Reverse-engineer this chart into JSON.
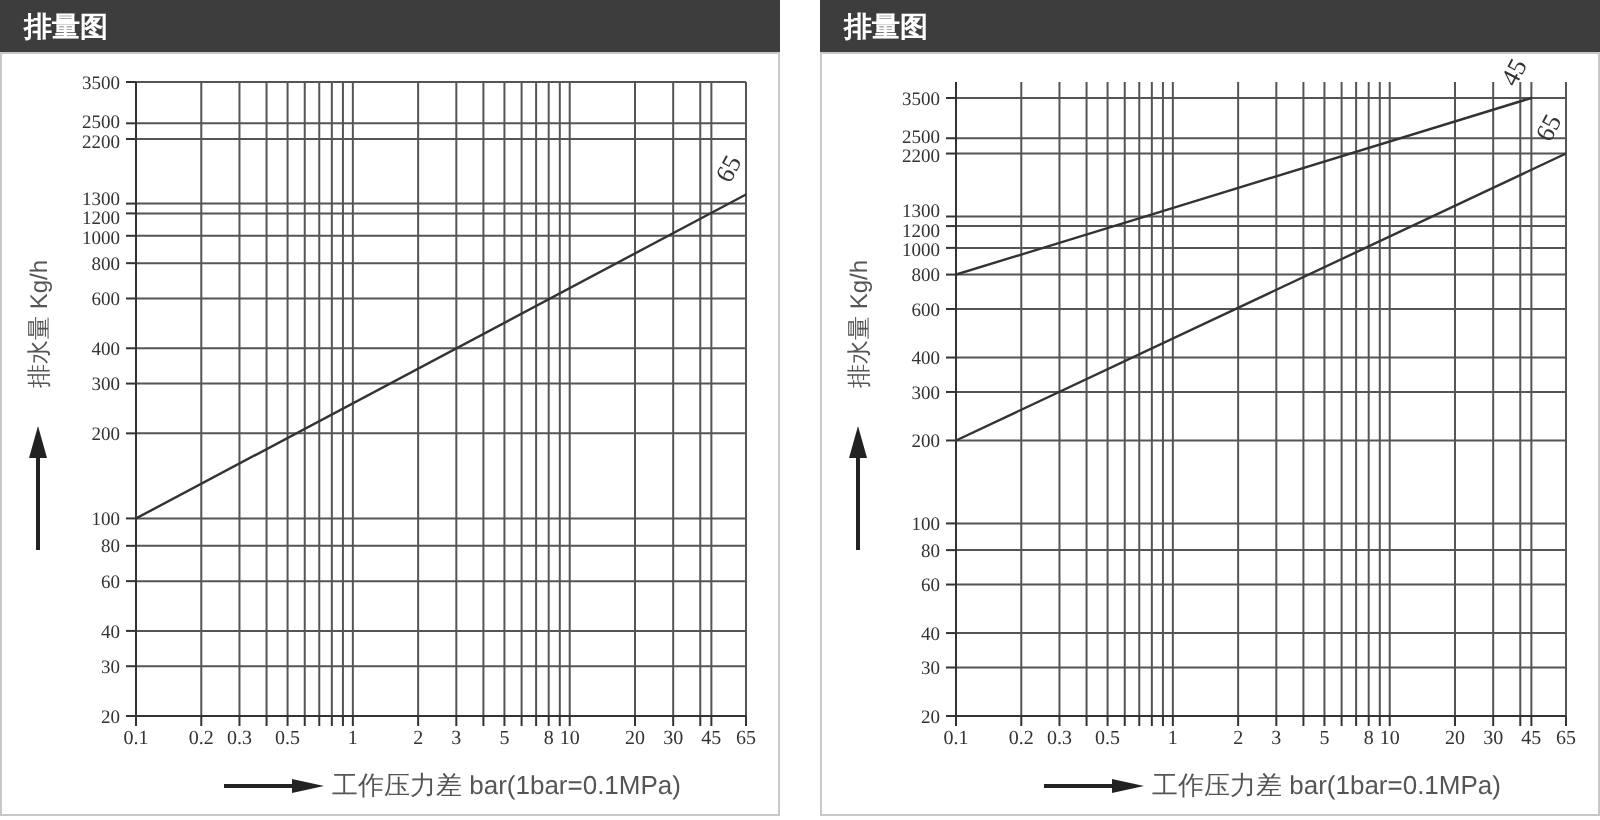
{
  "chart_data": [
    {
      "type": "line",
      "title": "排量图",
      "xlabel": "工作压力差 bar(1bar=0.1MPa)",
      "ylabel": "排水量 Kg/h",
      "log": "xy",
      "grid": true,
      "xlim": [
        0.1,
        65
      ],
      "xticks": [
        0.1,
        0.2,
        0.3,
        {
          "value": 0.4,
          "label": null
        },
        0.5,
        {
          "value": 0.6,
          "label": null
        },
        {
          "value": 0.7,
          "label": null
        },
        {
          "value": 0.8,
          "label": null
        },
        {
          "value": 0.9,
          "label": null
        },
        1,
        2,
        3,
        {
          "value": 4,
          "label": null
        },
        5,
        {
          "value": 6,
          "label": null
        },
        {
          "value": 7,
          "label": null
        },
        8,
        {
          "value": 9,
          "label": null
        },
        10,
        20,
        30,
        {
          "value": 40,
          "label": null
        },
        45,
        65
      ],
      "ylim": [
        20,
        3500
      ],
      "yticks": [
        20,
        30,
        40,
        60,
        80,
        100,
        200,
        300,
        400,
        600,
        800,
        1000,
        1200,
        1300,
        2200,
        2500,
        3500
      ],
      "series": [
        {
          "name": "65",
          "color": "#333333",
          "x": [
            0.1,
            65
          ],
          "values": [
            100,
            1400
          ]
        }
      ]
    },
    {
      "type": "line",
      "title": "排量图",
      "xlabel": "工作压力差 bar(1bar=0.1MPa)",
      "ylabel": "排水量 Kg/h",
      "log": "xy",
      "grid": true,
      "xlim": [
        0.1,
        65
      ],
      "xticks": [
        0.1,
        0.2,
        0.3,
        {
          "value": 0.4,
          "label": null
        },
        0.5,
        {
          "value": 0.6,
          "label": null
        },
        {
          "value": 0.7,
          "label": null
        },
        {
          "value": 0.8,
          "label": null
        },
        {
          "value": 0.9,
          "label": null
        },
        1,
        2,
        3,
        {
          "value": 4,
          "label": null
        },
        5,
        {
          "value": 6,
          "label": null
        },
        {
          "value": 7,
          "label": null
        },
        8,
        {
          "value": 9,
          "label": null
        },
        10,
        20,
        30,
        {
          "value": 40,
          "label": null
        },
        45,
        65
      ],
      "ylim": [
        20,
        4000
      ],
      "yticks": [
        20,
        30,
        40,
        60,
        80,
        100,
        200,
        300,
        400,
        600,
        800,
        1000,
        1200,
        1300,
        2200,
        2500,
        3500
      ],
      "series": [
        {
          "name": "45",
          "color": "#333333",
          "x": [
            0.1,
            45
          ],
          "values": [
            800,
            3500
          ]
        },
        {
          "name": "65",
          "color": "#333333",
          "x": [
            0.1,
            65
          ],
          "values": [
            200,
            2200
          ]
        }
      ]
    }
  ]
}
